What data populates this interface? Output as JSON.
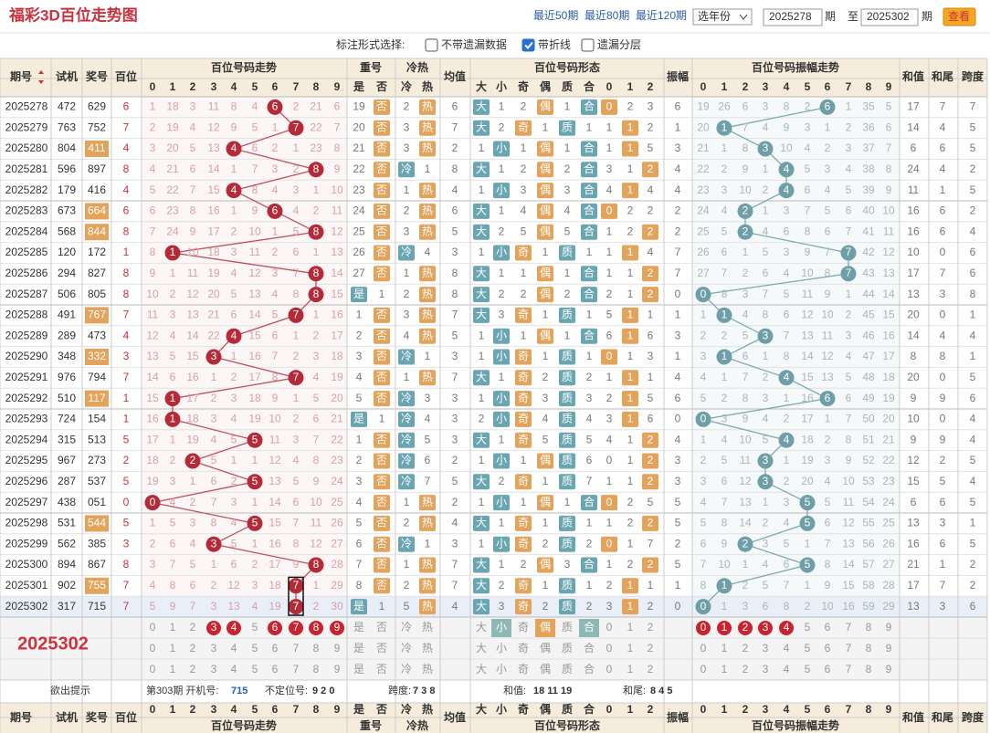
{
  "header": {
    "title": "福彩3D百位走势图",
    "links": [
      "最近50期",
      "最近80期",
      "最近120期"
    ],
    "year_select": "选年份",
    "from": "2025278",
    "period_unit": "期",
    "to_label": "至",
    "to": "2025302",
    "button": "查看"
  },
  "options": {
    "label": "标注形式选择:",
    "items": [
      {
        "text": "不带遗漏数据",
        "checked": false
      },
      {
        "text": "带折线",
        "checked": true
      },
      {
        "text": "遗漏分层",
        "checked": false
      }
    ]
  },
  "table": {
    "head": {
      "period": "期号",
      "test": "试机",
      "prize": "奖号",
      "hundred": "百位",
      "trend": "百位号码走势",
      "digits": [
        "0",
        "1",
        "2",
        "3",
        "4",
        "5",
        "6",
        "7",
        "8",
        "9"
      ],
      "repeat": "重号",
      "repeat_sub": [
        "是",
        "否"
      ],
      "hot": "冷热",
      "hot_sub": [
        "冷",
        "热"
      ],
      "avg": "均值",
      "form": "百位号码形态",
      "form_sub": [
        "大",
        "小",
        "奇",
        "偶",
        "质",
        "合",
        "0",
        "1",
        "2"
      ],
      "amp": "振幅",
      "amp_trend": "百位号码振幅走势",
      "sum": "和值",
      "tail": "和尾",
      "span": "跨度"
    },
    "rows": [
      [
        "2025278",
        "472",
        "629",
        "6",
        "1",
        "18",
        "3",
        "11",
        "8",
        "4",
        "6",
        "2",
        "21",
        "6",
        "19",
        "否",
        "2",
        "热",
        "6",
        "大",
        "1",
        "2",
        "偶",
        "1",
        "合",
        "0",
        "2",
        "3",
        "6",
        "19",
        "26",
        "6",
        "3",
        "8",
        "2",
        "6",
        "1",
        "35",
        "5",
        "17",
        "7",
        "7"
      ],
      [
        "2025279",
        "763",
        "752",
        "7",
        "2",
        "19",
        "4",
        "12",
        "9",
        "5",
        "1",
        "7",
        "22",
        "7",
        "20",
        "否",
        "3",
        "热",
        "7",
        "大",
        "2",
        "奇",
        "1",
        "质",
        "1",
        "1",
        "1",
        "2",
        "1",
        "20",
        "1",
        "7",
        "4",
        "9",
        "3",
        "1",
        "2",
        "36",
        "6",
        "14",
        "4",
        "5"
      ],
      [
        "2025280",
        "804",
        "411",
        "4",
        "3",
        "20",
        "5",
        "13",
        "4",
        "6",
        "2",
        "1",
        "23",
        "8",
        "21",
        "否",
        "3",
        "热",
        "2",
        "1",
        "小",
        "1",
        "偶",
        "1",
        "合",
        "1",
        "1",
        "5",
        "3",
        "21",
        "1",
        "8",
        "3",
        "10",
        "4",
        "2",
        "3",
        "37",
        "7",
        "6",
        "6",
        "5"
      ],
      [
        "2025281",
        "596",
        "897",
        "8",
        "4",
        "21",
        "6",
        "14",
        "1",
        "7",
        "3",
        "2",
        "8",
        "9",
        "22",
        "否",
        "冷",
        "1",
        "8",
        "大",
        "1",
        "2",
        "偶",
        "2",
        "合",
        "3",
        "1",
        "2",
        "4",
        "22",
        "2",
        "9",
        "1",
        "4",
        "5",
        "3",
        "4",
        "38",
        "8",
        "24",
        "4",
        "2"
      ],
      [
        "2025282",
        "179",
        "416",
        "4",
        "5",
        "22",
        "7",
        "15",
        "4",
        "8",
        "4",
        "3",
        "1",
        "10",
        "23",
        "否",
        "1",
        "热",
        "4",
        "1",
        "小",
        "3",
        "偶",
        "3",
        "合",
        "4",
        "1",
        "4",
        "4",
        "23",
        "3",
        "10",
        "2",
        "4",
        "6",
        "4",
        "5",
        "39",
        "9",
        "11",
        "1",
        "5"
      ],
      [
        "2025283",
        "673",
        "664",
        "6",
        "6",
        "23",
        "8",
        "16",
        "1",
        "9",
        "6",
        "4",
        "2",
        "11",
        "24",
        "否",
        "2",
        "热",
        "6",
        "大",
        "1",
        "4",
        "偶",
        "4",
        "合",
        "0",
        "2",
        "2",
        "2",
        "24",
        "4",
        "2",
        "1",
        "3",
        "7",
        "5",
        "6",
        "40",
        "10",
        "16",
        "6",
        "2"
      ],
      [
        "2025284",
        "568",
        "844",
        "8",
        "7",
        "24",
        "9",
        "17",
        "2",
        "10",
        "1",
        "5",
        "8",
        "12",
        "25",
        "否",
        "3",
        "热",
        "5",
        "大",
        "2",
        "5",
        "偶",
        "5",
        "合",
        "1",
        "2",
        "2",
        "2",
        "25",
        "5",
        "2",
        "4",
        "6",
        "8",
        "6",
        "7",
        "41",
        "11",
        "16",
        "6",
        "4"
      ],
      [
        "2025285",
        "120",
        "172",
        "1",
        "8",
        "1",
        "10",
        "18",
        "3",
        "11",
        "2",
        "6",
        "1",
        "13",
        "26",
        "否",
        "冷",
        "4",
        "3",
        "1",
        "小",
        "奇",
        "1",
        "质",
        "1",
        "1",
        "1",
        "4",
        "7",
        "26",
        "6",
        "1",
        "5",
        "3",
        "9",
        "7",
        "7",
        "42",
        "12",
        "10",
        "0",
        "6"
      ],
      [
        "2025286",
        "294",
        "827",
        "8",
        "9",
        "1",
        "11",
        "19",
        "4",
        "12",
        "3",
        "7",
        "8",
        "14",
        "27",
        "否",
        "1",
        "热",
        "8",
        "大",
        "1",
        "1",
        "偶",
        "1",
        "合",
        "1",
        "1",
        "2",
        "7",
        "27",
        "7",
        "2",
        "6",
        "4",
        "10",
        "8",
        "7",
        "43",
        "13",
        "17",
        "7",
        "6"
      ],
      [
        "2025287",
        "506",
        "805",
        "8",
        "10",
        "2",
        "12",
        "20",
        "5",
        "13",
        "4",
        "8",
        "8",
        "15",
        "是",
        "1",
        "2",
        "热",
        "8",
        "大",
        "2",
        "2",
        "偶",
        "2",
        "合",
        "2",
        "1",
        "2",
        "0",
        "0",
        "8",
        "3",
        "7",
        "5",
        "11",
        "9",
        "1",
        "44",
        "14",
        "13",
        "3",
        "8"
      ],
      [
        "2025288",
        "491",
        "767",
        "7",
        "11",
        "3",
        "13",
        "21",
        "6",
        "14",
        "5",
        "7",
        "1",
        "16",
        "1",
        "否",
        "3",
        "热",
        "7",
        "大",
        "3",
        "奇",
        "1",
        "质",
        "1",
        "5",
        "1",
        "1",
        "1",
        "1",
        "1",
        "4",
        "8",
        "6",
        "12",
        "10",
        "2",
        "45",
        "15",
        "20",
        "0",
        "1"
      ],
      [
        "2025289",
        "289",
        "473",
        "4",
        "12",
        "4",
        "14",
        "22",
        "4",
        "15",
        "6",
        "1",
        "2",
        "17",
        "2",
        "否",
        "4",
        "热",
        "5",
        "1",
        "小",
        "1",
        "偶",
        "1",
        "合",
        "6",
        "1",
        "6",
        "3",
        "2",
        "2",
        "5",
        "3",
        "7",
        "13",
        "11",
        "3",
        "46",
        "16",
        "14",
        "4",
        "4"
      ],
      [
        "2025290",
        "348",
        "332",
        "3",
        "13",
        "5",
        "15",
        "3",
        "1",
        "16",
        "7",
        "2",
        "3",
        "18",
        "3",
        "否",
        "冷",
        "1",
        "3",
        "1",
        "小",
        "奇",
        "1",
        "质",
        "1",
        "0",
        "1",
        "3",
        "1",
        "3",
        "1",
        "6",
        "1",
        "8",
        "14",
        "12",
        "4",
        "47",
        "17",
        "8",
        "8",
        "1"
      ],
      [
        "2025291",
        "976",
        "794",
        "7",
        "14",
        "6",
        "16",
        "1",
        "2",
        "17",
        "8",
        "7",
        "4",
        "19",
        "4",
        "否",
        "1",
        "热",
        "7",
        "大",
        "1",
        "奇",
        "2",
        "质",
        "2",
        "1",
        "1",
        "1",
        "4",
        "4",
        "1",
        "7",
        "2",
        "4",
        "15",
        "13",
        "5",
        "48",
        "18",
        "20",
        "0",
        "5"
      ],
      [
        "2025292",
        "510",
        "117",
        "1",
        "15",
        "1",
        "17",
        "2",
        "3",
        "18",
        "9",
        "1",
        "5",
        "20",
        "5",
        "否",
        "冷",
        "3",
        "3",
        "1",
        "小",
        "奇",
        "3",
        "质",
        "3",
        "2",
        "1",
        "5",
        "6",
        "5",
        "2",
        "8",
        "3",
        "1",
        "16",
        "6",
        "6",
        "49",
        "19",
        "9",
        "9",
        "6"
      ],
      [
        "2025293",
        "724",
        "154",
        "1",
        "16",
        "1",
        "18",
        "3",
        "4",
        "19",
        "10",
        "2",
        "6",
        "21",
        "是",
        "1",
        "冷",
        "4",
        "3",
        "2",
        "小",
        "奇",
        "4",
        "质",
        "4",
        "3",
        "1",
        "6",
        "0",
        "0",
        "3",
        "9",
        "4",
        "2",
        "17",
        "1",
        "7",
        "50",
        "20",
        "10",
        "0",
        "4"
      ],
      [
        "2025294",
        "315",
        "513",
        "5",
        "17",
        "1",
        "19",
        "4",
        "5",
        "5",
        "11",
        "3",
        "7",
        "22",
        "1",
        "否",
        "冷",
        "5",
        "3",
        "大",
        "1",
        "奇",
        "5",
        "质",
        "5",
        "4",
        "1",
        "2",
        "4",
        "1",
        "4",
        "10",
        "5",
        "4",
        "18",
        "2",
        "8",
        "51",
        "21",
        "9",
        "9",
        "4"
      ],
      [
        "2025295",
        "967",
        "273",
        "2",
        "18",
        "2",
        "2",
        "5",
        "1",
        "1",
        "12",
        "4",
        "8",
        "23",
        "2",
        "否",
        "冷",
        "6",
        "2",
        "1",
        "小",
        "1",
        "偶",
        "质",
        "6",
        "0",
        "1",
        "2",
        "3",
        "2",
        "5",
        "11",
        "3",
        "1",
        "19",
        "3",
        "9",
        "52",
        "22",
        "12",
        "2",
        "5"
      ],
      [
        "2025296",
        "287",
        "537",
        "5",
        "19",
        "3",
        "1",
        "6",
        "2",
        "5",
        "13",
        "5",
        "9",
        "24",
        "3",
        "否",
        "冷",
        "7",
        "5",
        "大",
        "2",
        "奇",
        "1",
        "质",
        "7",
        "1",
        "1",
        "2",
        "3",
        "3",
        "6",
        "12",
        "3",
        "2",
        "20",
        "4",
        "10",
        "53",
        "23",
        "15",
        "5",
        "4"
      ],
      [
        "2025297",
        "438",
        "051",
        "0",
        "0",
        "4",
        "2",
        "7",
        "3",
        "1",
        "14",
        "6",
        "10",
        "25",
        "4",
        "否",
        "1",
        "热",
        "2",
        "1",
        "小",
        "1",
        "偶",
        "1",
        "合",
        "0",
        "2",
        "5",
        "5",
        "4",
        "7",
        "13",
        "1",
        "3",
        "5",
        "5",
        "11",
        "54",
        "24",
        "6",
        "6",
        "5"
      ],
      [
        "2025298",
        "531",
        "544",
        "5",
        "1",
        "5",
        "3",
        "8",
        "4",
        "5",
        "15",
        "7",
        "11",
        "26",
        "5",
        "否",
        "2",
        "热",
        "4",
        "大",
        "1",
        "奇",
        "1",
        "质",
        "1",
        "1",
        "2",
        "2",
        "5",
        "5",
        "8",
        "14",
        "2",
        "4",
        "5",
        "6",
        "12",
        "55",
        "25",
        "13",
        "3",
        "1"
      ],
      [
        "2025299",
        "562",
        "385",
        "3",
        "2",
        "6",
        "4",
        "3",
        "5",
        "1",
        "16",
        "8",
        "12",
        "27",
        "6",
        "否",
        "冷",
        "1",
        "3",
        "1",
        "小",
        "奇",
        "2",
        "质",
        "2",
        "0",
        "1",
        "7",
        "2",
        "6",
        "9",
        "2",
        "3",
        "5",
        "1",
        "7",
        "13",
        "56",
        "26",
        "16",
        "6",
        "5"
      ],
      [
        "2025300",
        "894",
        "867",
        "8",
        "3",
        "7",
        "5",
        "1",
        "6",
        "2",
        "17",
        "9",
        "8",
        "28",
        "7",
        "否",
        "1",
        "热",
        "7",
        "大",
        "1",
        "2",
        "偶",
        "3",
        "合",
        "1",
        "2",
        "2",
        "5",
        "7",
        "10",
        "1",
        "4",
        "6",
        "5",
        "8",
        "14",
        "57",
        "27",
        "21",
        "1",
        "2"
      ],
      [
        "2025301",
        "902",
        "755",
        "7",
        "4",
        "8",
        "6",
        "2",
        "12",
        "3",
        "18",
        "7",
        "1",
        "29",
        "8",
        "否",
        "2",
        "热",
        "7",
        "大",
        "2",
        "奇",
        "1",
        "质",
        "1",
        "2",
        "1",
        "1",
        "1",
        "8",
        "1",
        "2",
        "5",
        "7",
        "1",
        "9",
        "15",
        "58",
        "28",
        "17",
        "7",
        "2"
      ],
      [
        "2025302",
        "317",
        "715",
        "7",
        "5",
        "9",
        "7",
        "3",
        "13",
        "4",
        "19",
        "7",
        "2",
        "30",
        "是",
        "1",
        "5",
        "热",
        "4",
        "大",
        "3",
        "奇",
        "2",
        "质",
        "2",
        "3",
        "1",
        "2",
        "0",
        "0",
        "1",
        "3",
        "6",
        "8",
        "2",
        "10",
        "16",
        "59",
        "29",
        "13",
        "3",
        "6"
      ]
    ],
    "select": {
      "trend": [
        3,
        4,
        6,
        7,
        8,
        9
      ],
      "form": [
        1,
        3,
        5
      ],
      "amp": [
        0,
        1,
        2,
        3,
        4
      ]
    },
    "watermark": "2025302"
  },
  "footer": {
    "hint": "欲出提示",
    "next": "第303期 开机号:",
    "open": "715",
    "unfixed_label": "不定位号:",
    "unfixed": "9 2 0",
    "span_label": "跨度:",
    "span": "7 3 8",
    "sum_label": "和值:",
    "sum": "18 11 19",
    "tail_label": "和尾:",
    "tail": "8 4 5"
  }
}
